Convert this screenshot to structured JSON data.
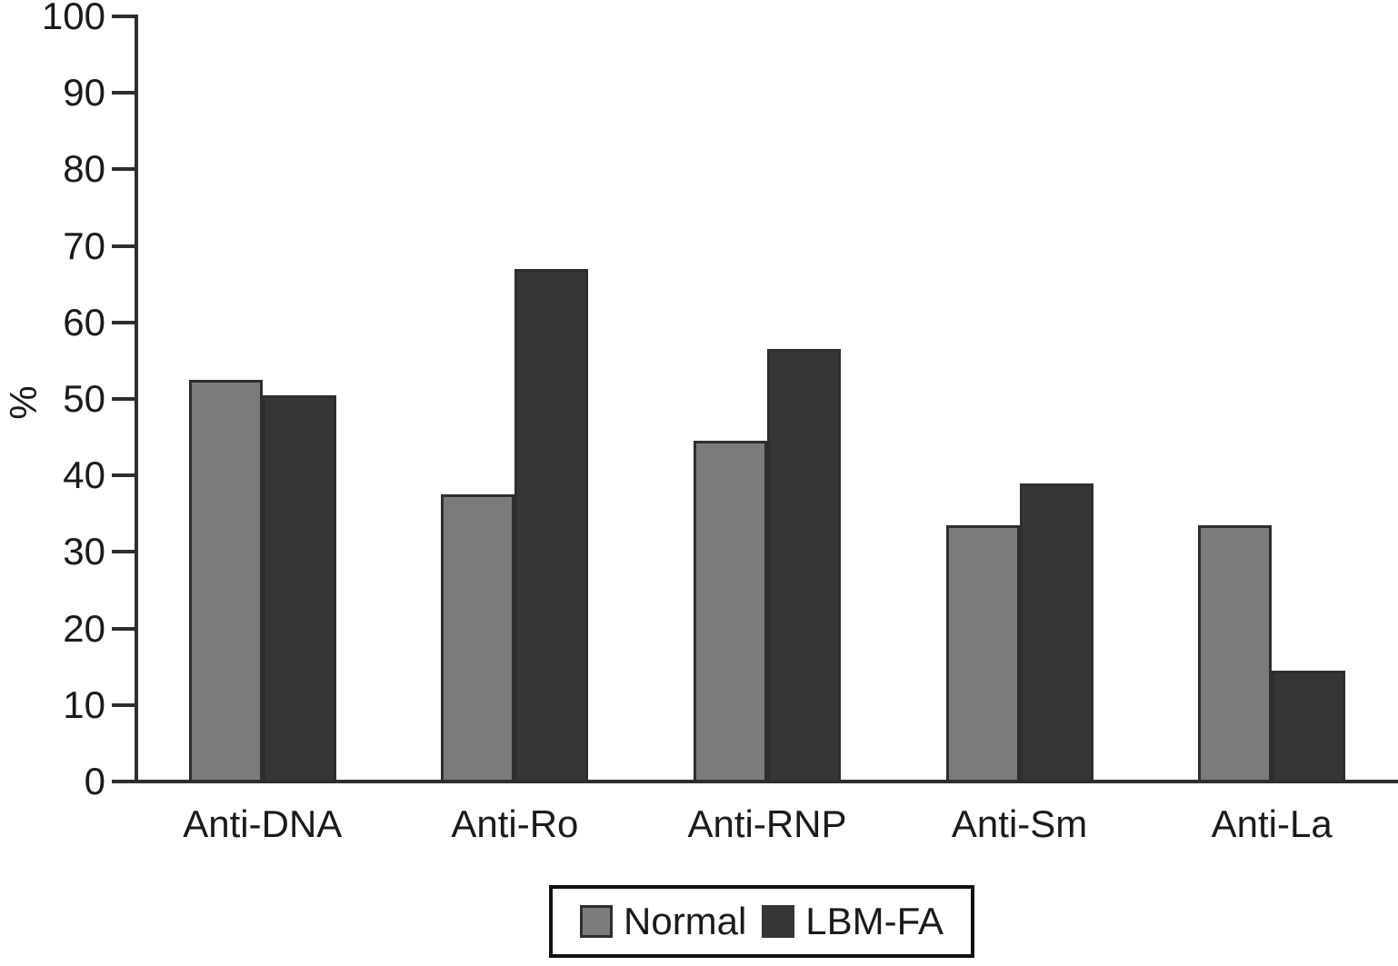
{
  "chart_data": {
    "type": "bar",
    "title": "",
    "xlabel": "",
    "ylabel": "%",
    "categories": [
      "Anti-DNA",
      "Anti-Ro",
      "Anti-RNP",
      "Anti-Sm",
      "Anti-La"
    ],
    "series": [
      {
        "name": "Normal",
        "color": "#7a7b7d",
        "values": [
          52.5,
          37.5,
          44.5,
          33.5,
          33.5
        ]
      },
      {
        "name": "LBM-FA",
        "color": "#363638",
        "values": [
          50.5,
          67.0,
          56.5,
          39.0,
          14.5
        ]
      }
    ],
    "ylim": [
      0,
      100
    ],
    "y_ticks": [
      0,
      10,
      20,
      30,
      40,
      50,
      60,
      70,
      80,
      90,
      100
    ],
    "grid": false,
    "legend_position": "bottom",
    "bar_border_color": "#2e2e30",
    "axis_color": "#2e2e30",
    "text_color": "#1a1a1a"
  }
}
